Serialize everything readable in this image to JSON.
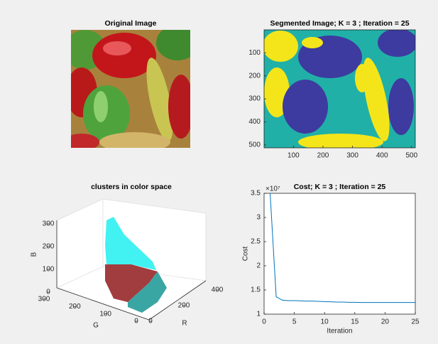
{
  "chart_data": [
    {
      "type": "image",
      "title": "Original Image"
    },
    {
      "type": "image",
      "title": "Segmented Image; K = 3 ; Iteration = 25",
      "xlim": [
        0.5,
        512.5
      ],
      "ylim": [
        0.5,
        512.5
      ],
      "xticks": [
        100,
        200,
        300,
        400,
        500
      ],
      "yticks": [
        100,
        200,
        300,
        400,
        500
      ]
    },
    {
      "type": "scatter3d",
      "title": "clusters in color space",
      "xlabel": "R",
      "ylabel": "G",
      "zlabel": "B",
      "xlim": [
        0,
        400
      ],
      "xticks": [
        0,
        200,
        400
      ],
      "ylim": [
        0,
        300
      ],
      "yticks": [
        0,
        100,
        200,
        300
      ],
      "zlim": [
        0,
        300
      ],
      "zticks": [
        0,
        100,
        200,
        300
      ]
    },
    {
      "type": "line",
      "title": "Cost; K = 3 ; Iteration = 25",
      "xlabel": "Iteration",
      "ylabel": "Cost",
      "exponent_label": "×10⁷",
      "x": [
        1,
        2,
        3,
        4,
        5,
        6,
        7,
        8,
        9,
        10,
        11,
        12,
        13,
        14,
        15,
        16,
        17,
        18,
        19,
        20,
        21,
        22,
        23,
        24,
        25
      ],
      "values": [
        3.5,
        1.36,
        1.29,
        1.28,
        1.28,
        1.275,
        1.27,
        1.27,
        1.265,
        1.26,
        1.255,
        1.25,
        1.25,
        1.245,
        1.245,
        1.24,
        1.24,
        1.24,
        1.24,
        1.24,
        1.24,
        1.24,
        1.24,
        1.24,
        1.24
      ],
      "color": "#0072bd",
      "xlim": [
        0,
        25
      ],
      "xticks": [
        0,
        5,
        10,
        15,
        20,
        25
      ],
      "ylim": [
        1,
        3.5
      ],
      "yticks": [
        1,
        1.5,
        2,
        2.5,
        3,
        3.5
      ]
    }
  ]
}
